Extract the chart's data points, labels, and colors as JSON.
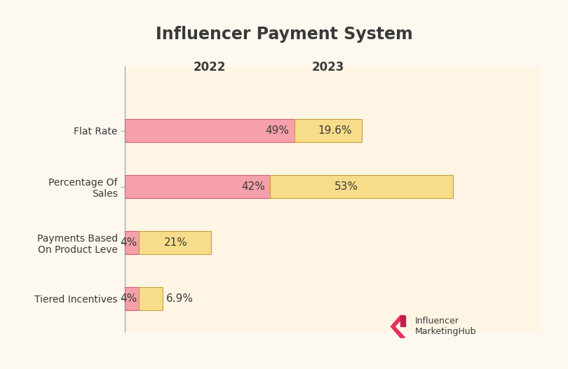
{
  "title": "Influencer Payment System",
  "background_color": "#fef9f0",
  "plot_bg_color": "#fef5e4",
  "categories": [
    "Tiered Incentives",
    "Payments Based\nOn Product Leve",
    "Percentage Of\nSales",
    "Flat Rate"
  ],
  "values_2022": [
    4,
    4,
    42,
    49
  ],
  "values_2023": [
    6.9,
    21,
    53,
    19.6
  ],
  "labels_2022": [
    "4%",
    "4%",
    "42%",
    "49%"
  ],
  "labels_2023": [
    "6.9%",
    "21%",
    "53%",
    "19.6%"
  ],
  "color_2022": "#f5a0aa",
  "color_2023": "#f7dc8a",
  "bar_2022_edge": "#d0607a",
  "bar_2023_edge": "#c8a040",
  "title_fontsize": 17,
  "label_fontsize": 11,
  "tick_fontsize": 10,
  "year_label_fontsize": 12,
  "xlim_max": 120
}
